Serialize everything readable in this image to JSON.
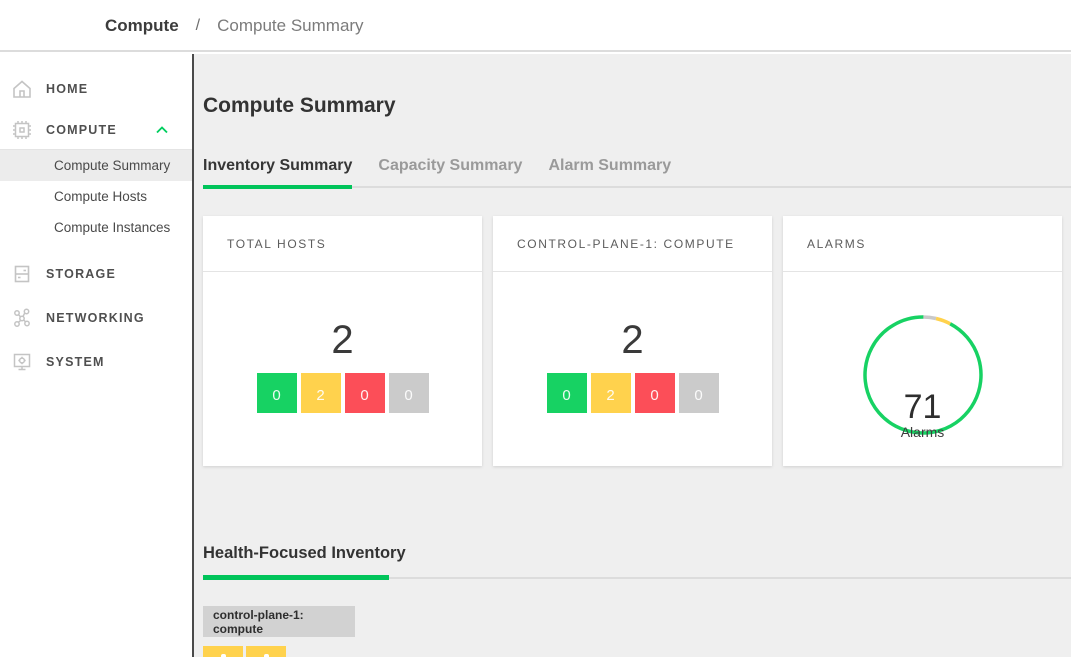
{
  "breadcrumb": {
    "section": "Compute",
    "separator": "/",
    "page": "Compute Summary"
  },
  "sidebar": {
    "home_label": "HOME",
    "compute_label": "COMPUTE",
    "compute_children": [
      {
        "label": "Compute Summary",
        "selected": true
      },
      {
        "label": "Compute Hosts",
        "selected": false
      },
      {
        "label": "Compute Instances",
        "selected": false
      }
    ],
    "storage_label": "STORAGE",
    "networking_label": "NETWORKING",
    "system_label": "SYSTEM"
  },
  "main": {
    "title": "Compute Summary",
    "tabs": [
      {
        "label": "Inventory Summary",
        "active": true
      },
      {
        "label": "Capacity Summary",
        "active": false
      },
      {
        "label": "Alarm Summary",
        "active": false
      }
    ],
    "cards": [
      {
        "title": "TOTAL HOSTS",
        "total": "2",
        "badges": [
          {
            "status": "ok",
            "value": "0",
            "color": "#17d263"
          },
          {
            "status": "warning",
            "value": "2",
            "color": "#ffd24d"
          },
          {
            "status": "critical",
            "value": "0",
            "color": "#fc4e58"
          },
          {
            "status": "unknown",
            "value": "0",
            "color": "#cbcbcb"
          }
        ]
      },
      {
        "title": "CONTROL-PLANE-1: COMPUTE",
        "total": "2",
        "badges": [
          {
            "status": "ok",
            "value": "0",
            "color": "#17d263"
          },
          {
            "status": "warning",
            "value": "2",
            "color": "#ffd24d"
          },
          {
            "status": "critical",
            "value": "0",
            "color": "#fc4e58"
          },
          {
            "status": "unknown",
            "value": "0",
            "color": "#cbcbcb"
          }
        ]
      },
      {
        "title": "ALARMS",
        "donut": {
          "value": "71",
          "label": "Alarms",
          "segments": [
            {
              "name": "unknown",
              "color": "#c9c9c9",
              "degrees": 13
            },
            {
              "name": "warning",
              "color": "#ffd24d",
              "degrees": 15
            },
            {
              "name": "ok",
              "color": "#17d263",
              "degrees": 332
            }
          ]
        }
      }
    ],
    "health": {
      "title": "Health-Focused Inventory",
      "group_label": "control-plane-1: compute",
      "tiles": [
        {
          "status": "warning",
          "color": "#ffd24d"
        },
        {
          "status": "warning",
          "color": "#ffd24d"
        }
      ]
    }
  },
  "colors": {
    "accent_green": "#00c45a",
    "ok": "#17d263",
    "warning": "#ffd24d",
    "critical": "#fc4e58",
    "unknown": "#cbcbcb"
  }
}
